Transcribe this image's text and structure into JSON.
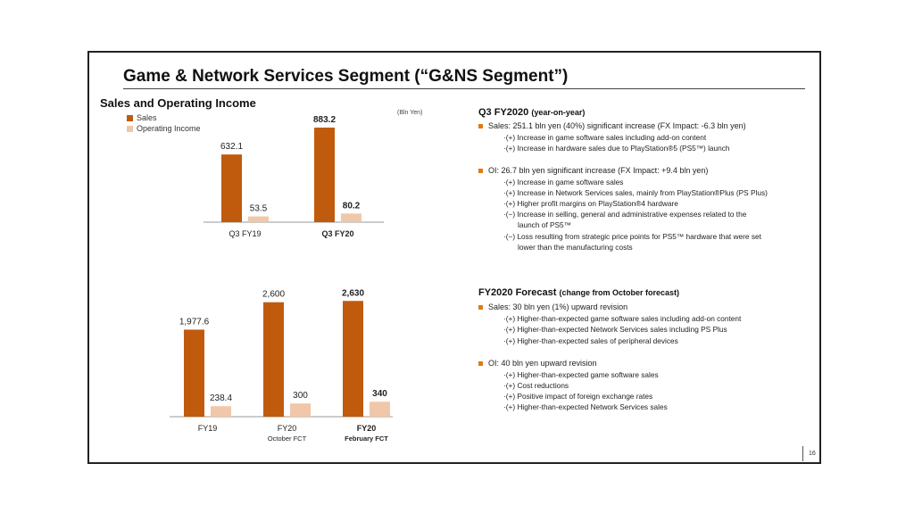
{
  "title": "Game & Network Services Segment (“G&NS Segment”)",
  "left": {
    "section_title": "Sales and Operating Income",
    "legend": {
      "sales": "Sales",
      "oi": "Operating Income"
    },
    "unit": "(Bln Yen)"
  },
  "colors": {
    "sales": "#c05b0e",
    "oi": "#f0c7a8",
    "bullet": "#e07a12"
  },
  "chart_data": [
    {
      "type": "bar",
      "categories": [
        "Q3 FY19",
        "Q3 FY20"
      ],
      "category_sublabels": [
        "",
        ""
      ],
      "bold_categories": [
        false,
        true
      ],
      "series": [
        {
          "name": "Sales",
          "values": [
            632.1,
            883.2
          ],
          "labels": [
            "632.1",
            "883.2"
          ]
        },
        {
          "name": "Operating Income",
          "values": [
            53.5,
            80.2
          ],
          "labels": [
            "53.5",
            "80.2"
          ]
        }
      ],
      "ylim": [
        0,
        1000
      ]
    },
    {
      "type": "bar",
      "categories": [
        "FY19",
        "FY20",
        "FY20"
      ],
      "category_sublabels": [
        "",
        "October FCT",
        "February FCT"
      ],
      "bold_categories": [
        false,
        false,
        true
      ],
      "series": [
        {
          "name": "Sales",
          "values": [
            1977.6,
            2600,
            2630
          ],
          "labels": [
            "1,977.6",
            "2,600",
            "2,630"
          ]
        },
        {
          "name": "Operating Income",
          "values": [
            238.4,
            300,
            340
          ],
          "labels": [
            "238.4",
            "300",
            "340"
          ]
        }
      ],
      "ylim": [
        0,
        3000
      ]
    }
  ],
  "q3": {
    "heading": "Q3 FY2020",
    "heading_paren": "(year-on-year)",
    "sales_bullet": "Sales: 251.1 bln yen (40%) significant increase (FX Impact: -6.3 bln yen)",
    "sales_items": [
      "·(+) Increase in game software sales including add-on content",
      "·(+) Increase in hardware sales due to PlayStation®5 (PS5™) launch"
    ],
    "oi_bullet": "OI: 26.7 bln yen significant increase (FX Impact: +9.4 bln yen)",
    "oi_items": [
      "·(+) Increase in game software sales",
      "·(+) Increase in Network Services sales, mainly from PlayStation®Plus (PS Plus)",
      "·(+) Higher profit margins on PlayStation®4 hardware",
      "·(−) Increase in selling, general and administrative expenses related to the",
      "launch of PS5™",
      "·(−) Loss resulting from strategic price points for PS5™ hardware that were set",
      "lower than the manufacturing costs"
    ]
  },
  "fy": {
    "heading": "FY2020 Forecast",
    "heading_paren": "(change from October forecast)",
    "sales_bullet": "Sales: 30 bln yen (1%) upward revision",
    "sales_items": [
      "·(+) Higher-than-expected game software sales including add-on content",
      "·(+) Higher-than-expected Network Services sales including PS Plus",
      "·(+) Higher-than-expected sales of peripheral devices"
    ],
    "oi_bullet": "OI: 40 bln yen upward revision",
    "oi_items": [
      "·(+) Higher-than-expected game software sales",
      "·(+) Cost reductions",
      "·(+) Positive impact of foreign exchange rates",
      "·(+) Higher-than-expected Network Services sales"
    ]
  },
  "page_number": "16"
}
